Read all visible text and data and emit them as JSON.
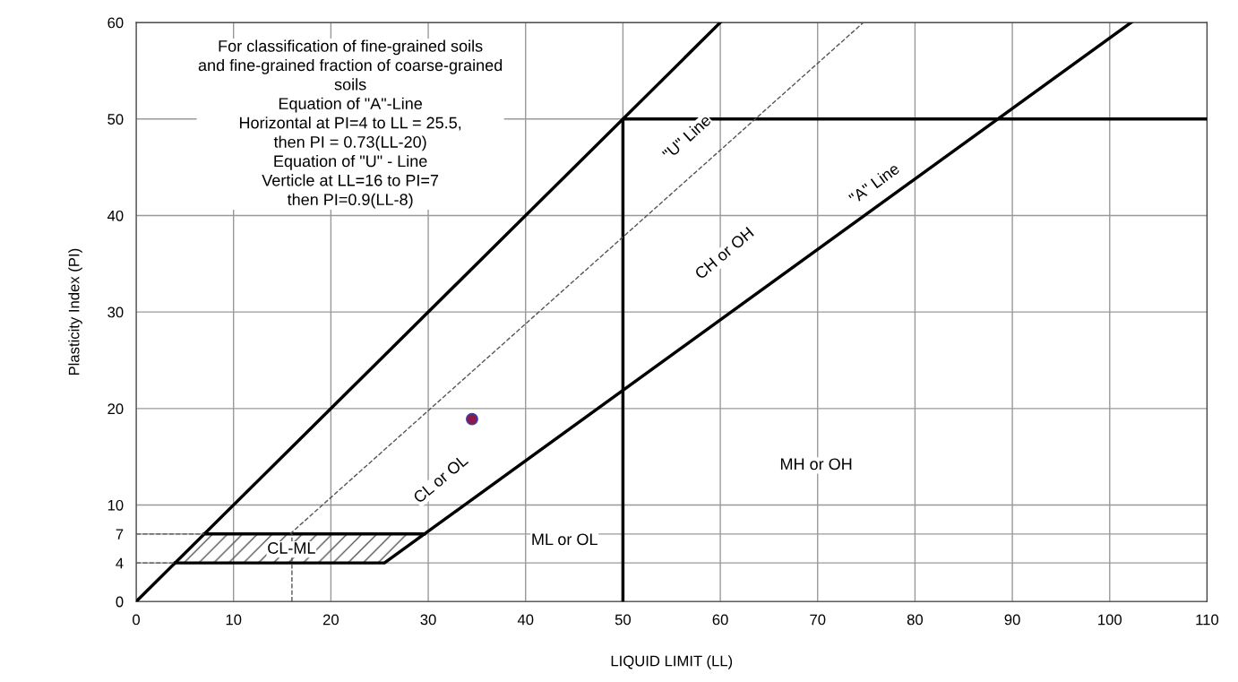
{
  "chart_data": {
    "type": "line",
    "xlabel": "LIQUID LIMIT (LL)",
    "ylabel": "Plasticity Index (PI)",
    "xlim": [
      0,
      110
    ],
    "ylim": [
      0,
      60
    ],
    "xticks": [
      0,
      10,
      20,
      30,
      40,
      50,
      60,
      70,
      80,
      90,
      100,
      110
    ],
    "yticks": [
      0,
      4,
      7,
      10,
      20,
      30,
      40,
      50,
      60
    ],
    "grid": true,
    "series": [
      {
        "type": "line",
        "color": "#000000",
        "line_style": "solid",
        "x": [
          0,
          60
        ],
        "values": [
          0,
          60
        ]
      },
      {
        "type": "line",
        "color": "#000000",
        "line_style": "solid",
        "x": [
          50,
          50,
          110
        ],
        "values": [
          0,
          50,
          50
        ]
      },
      {
        "type": "line",
        "color": "#000000",
        "line_style": "solid",
        "x": [
          4,
          25.5,
          102.2
        ],
        "values": [
          4,
          4,
          60
        ]
      },
      {
        "type": "line",
        "color": "#000000",
        "line_style": "solid",
        "x": [
          7,
          29.6
        ],
        "values": [
          7,
          7
        ]
      },
      {
        "type": "line",
        "color": "#555555",
        "line_style": "dashed",
        "x": [
          15.8,
          74.7
        ],
        "values": [
          7,
          60
        ]
      },
      {
        "type": "line",
        "color": "#555555",
        "line_style": "dashed",
        "x": [
          16,
          16
        ],
        "values": [
          0,
          7
        ]
      },
      {
        "type": "line",
        "color": "#555555",
        "line_style": "dashed",
        "x": [
          0,
          7
        ],
        "values": [
          7,
          7
        ]
      },
      {
        "type": "line",
        "color": "#555555",
        "line_style": "dashed",
        "x": [
          0,
          4
        ],
        "values": [
          4,
          4
        ]
      },
      {
        "type": "scatter",
        "color": "#8b1a4a",
        "marker": "circle",
        "x": [
          34.5
        ],
        "values": [
          18.9
        ]
      }
    ],
    "annotations": [
      "For classification of fine-grained soils\nand fine-grained fraction of coarse-grained\nsoils\nEquation of \"A\"-Line\nHorizontal at PI=4 to LL = 25.5,\nthen PI = 0.73(LL-20)\nEquation of \"U\" - Line\nVerticle at LL=16 to PI=7\nthen PI=0.9(LL-8)",
      "CL-ML",
      "ML or OL",
      "CL or OL",
      "MH or OH",
      "CH or OH",
      "\"U\" Line",
      "\"A\" Line"
    ]
  }
}
